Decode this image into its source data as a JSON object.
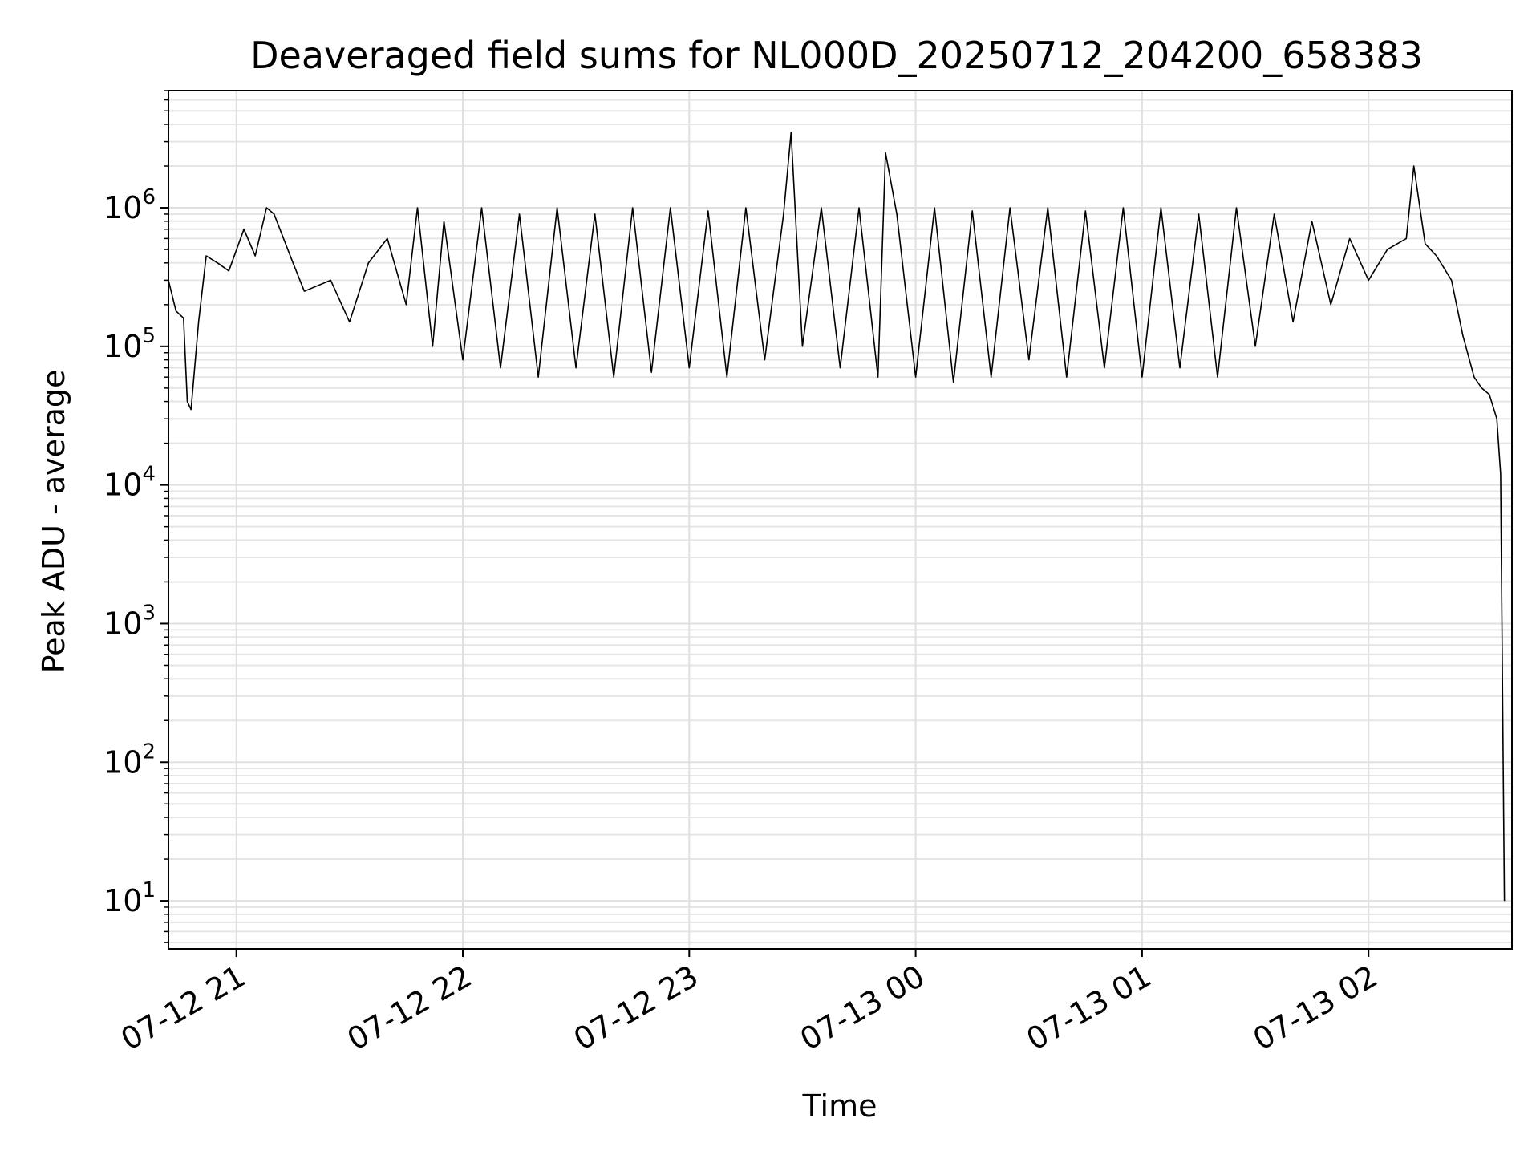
{
  "chart_data": {
    "type": "line",
    "title": "Deaveraged field sums for NL000D_20250712_204200_658383",
    "xlabel": "Time",
    "ylabel": "Peak ADU - average",
    "yscale": "log",
    "ylim": [
      4.5,
      7000000
    ],
    "xlim": [
      "2025-07-12 20:42",
      "2025-07-13 02:38"
    ],
    "grid": true,
    "x_ticks": [
      {
        "value": "2025-07-12 21:00",
        "label": "07-12 21"
      },
      {
        "value": "2025-07-12 22:00",
        "label": "07-12 22"
      },
      {
        "value": "2025-07-12 23:00",
        "label": "07-12 23"
      },
      {
        "value": "2025-07-13 00:00",
        "label": "07-13 00"
      },
      {
        "value": "2025-07-13 01:00",
        "label": "07-13 01"
      },
      {
        "value": "2025-07-13 02:00",
        "label": "07-13 02"
      }
    ],
    "y_ticks": [
      {
        "value": 10,
        "base": "10",
        "exp": "1"
      },
      {
        "value": 100,
        "base": "10",
        "exp": "2"
      },
      {
        "value": 1000,
        "base": "10",
        "exp": "3"
      },
      {
        "value": 10000,
        "base": "10",
        "exp": "4"
      },
      {
        "value": 100000,
        "base": "10",
        "exp": "5"
      },
      {
        "value": 1000000,
        "base": "10",
        "exp": "6"
      }
    ],
    "series": [
      {
        "color": "#000000",
        "x": [
          "2025-07-12 20:42",
          "2025-07-12 20:44",
          "2025-07-12 20:46",
          "2025-07-12 20:47",
          "2025-07-12 20:48",
          "2025-07-12 20:50",
          "2025-07-12 20:52",
          "2025-07-12 20:55",
          "2025-07-12 20:58",
          "2025-07-12 21:02",
          "2025-07-12 21:05",
          "2025-07-12 21:08",
          "2025-07-12 21:10",
          "2025-07-12 21:15",
          "2025-07-12 21:18",
          "2025-07-12 21:25",
          "2025-07-12 21:30",
          "2025-07-12 21:35",
          "2025-07-12 21:40",
          "2025-07-12 21:45",
          "2025-07-12 21:48",
          "2025-07-12 21:52",
          "2025-07-12 21:55",
          "2025-07-12 22:00",
          "2025-07-12 22:05",
          "2025-07-12 22:10",
          "2025-07-12 22:15",
          "2025-07-12 22:20",
          "2025-07-12 22:25",
          "2025-07-12 22:30",
          "2025-07-12 22:35",
          "2025-07-12 22:40",
          "2025-07-12 22:45",
          "2025-07-12 22:50",
          "2025-07-12 22:55",
          "2025-07-12 23:00",
          "2025-07-12 23:05",
          "2025-07-12 23:10",
          "2025-07-12 23:15",
          "2025-07-12 23:20",
          "2025-07-12 23:25",
          "2025-07-12 23:27",
          "2025-07-12 23:30",
          "2025-07-12 23:35",
          "2025-07-12 23:40",
          "2025-07-12 23:45",
          "2025-07-12 23:50",
          "2025-07-12 23:52",
          "2025-07-12 23:55",
          "2025-07-13 00:00",
          "2025-07-13 00:05",
          "2025-07-13 00:10",
          "2025-07-13 00:15",
          "2025-07-13 00:20",
          "2025-07-13 00:25",
          "2025-07-13 00:30",
          "2025-07-13 00:35",
          "2025-07-13 00:40",
          "2025-07-13 00:45",
          "2025-07-13 00:50",
          "2025-07-13 00:55",
          "2025-07-13 01:00",
          "2025-07-13 01:05",
          "2025-07-13 01:10",
          "2025-07-13 01:15",
          "2025-07-13 01:20",
          "2025-07-13 01:25",
          "2025-07-13 01:30",
          "2025-07-13 01:35",
          "2025-07-13 01:40",
          "2025-07-13 01:45",
          "2025-07-13 01:50",
          "2025-07-13 01:55",
          "2025-07-13 02:00",
          "2025-07-13 02:05",
          "2025-07-13 02:10",
          "2025-07-13 02:12",
          "2025-07-13 02:15",
          "2025-07-13 02:18",
          "2025-07-13 02:22",
          "2025-07-13 02:25",
          "2025-07-13 02:28",
          "2025-07-13 02:30",
          "2025-07-13 02:32",
          "2025-07-13 02:34",
          "2025-07-13 02:35",
          "2025-07-13 02:36"
        ],
        "y": [
          300000,
          180000,
          160000,
          40000,
          35000,
          150000,
          450000,
          400000,
          350000,
          700000,
          450000,
          1000000,
          900000,
          400000,
          250000,
          300000,
          150000,
          400000,
          600000,
          200000,
          1000000,
          100000,
          800000,
          80000,
          1000000,
          70000,
          900000,
          60000,
          1000000,
          70000,
          900000,
          60000,
          1000000,
          65000,
          1000000,
          70000,
          950000,
          60000,
          1000000,
          80000,
          900000,
          3500000,
          100000,
          1000000,
          70000,
          1000000,
          60000,
          2500000,
          900000,
          60000,
          1000000,
          55000,
          950000,
          60000,
          1000000,
          80000,
          1000000,
          60000,
          950000,
          70000,
          1000000,
          60000,
          1000000,
          70000,
          900000,
          60000,
          1000000,
          100000,
          900000,
          150000,
          800000,
          200000,
          600000,
          300000,
          500000,
          600000,
          2000000,
          550000,
          450000,
          300000,
          120000,
          60000,
          50000,
          45000,
          30000,
          12000,
          10
        ]
      }
    ]
  }
}
